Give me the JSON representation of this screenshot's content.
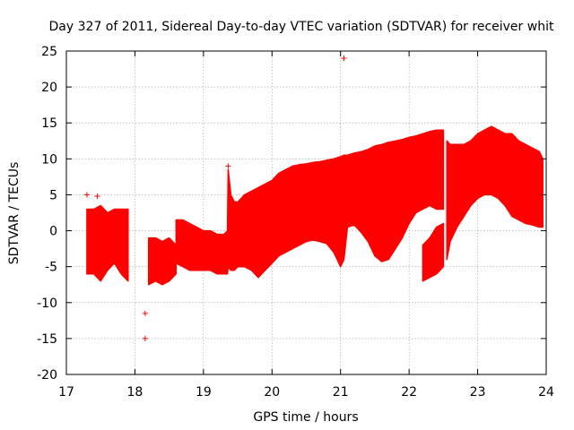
{
  "chart_data": {
    "type": "area",
    "title": "Day 327 of 2011, Sidereal Day-to-day VTEC variation (SDTVAR) for receiver whit",
    "xlabel": "GPS time / hours",
    "ylabel": "SDTVAR / TECUs",
    "xlim": [
      17,
      24
    ],
    "ylim": [
      -20,
      25
    ],
    "xticks": [
      "17",
      "18",
      "19",
      "20",
      "21",
      "22",
      "23",
      "24"
    ],
    "yticks": [
      "25",
      "20",
      "15",
      "10",
      "5",
      "0",
      "-5",
      "-10",
      "-15",
      "-20"
    ],
    "grid": true,
    "series_color": "#ff0000",
    "band": {
      "name": "SDTVAR range",
      "segments": [
        {
          "x": [
            17.3,
            17.4,
            17.5,
            17.6,
            17.7,
            17.8,
            17.9
          ],
          "upper": [
            3.0,
            3.0,
            3.5,
            2.5,
            3.0,
            3.0,
            3.0
          ],
          "lower": [
            -6.0,
            -6.0,
            -7.0,
            -5.5,
            -4.5,
            -6.0,
            -7.0
          ]
        },
        {
          "x": [
            18.2,
            18.3,
            18.4,
            18.5,
            18.6
          ],
          "upper": [
            -1.0,
            -1.0,
            -1.5,
            -1.0,
            -2.0
          ],
          "lower": [
            -7.5,
            -7.0,
            -7.5,
            -7.0,
            -6.0
          ]
        },
        {
          "x": [
            18.6,
            18.7,
            18.8,
            18.9,
            19.0,
            19.1,
            19.2,
            19.3,
            19.35,
            19.36,
            19.4,
            19.45,
            19.5,
            19.6,
            19.7,
            19.8,
            19.9,
            20.0,
            20.1,
            20.2,
            20.3,
            20.4,
            20.5,
            20.6,
            20.7,
            20.8,
            20.9,
            21.0,
            21.05,
            21.1,
            21.2,
            21.3,
            21.4,
            21.5,
            21.6,
            21.7,
            21.8,
            21.9,
            22.0,
            22.1,
            22.2,
            22.3,
            22.4,
            22.5
          ],
          "upper": [
            1.5,
            1.5,
            1.0,
            0.5,
            0.0,
            0.0,
            -0.5,
            -0.5,
            0.0,
            8.5,
            5.0,
            4.0,
            4.0,
            5.0,
            5.5,
            6.0,
            6.5,
            7.0,
            8.0,
            8.5,
            9.0,
            9.2,
            9.3,
            9.5,
            9.6,
            9.8,
            10.0,
            10.3,
            10.5,
            10.5,
            10.8,
            11.0,
            11.3,
            11.8,
            12.0,
            12.3,
            12.5,
            12.7,
            13.0,
            13.2,
            13.5,
            13.8,
            14.0,
            14.0
          ],
          "lower": [
            -4.5,
            -5.0,
            -5.5,
            -5.5,
            -5.5,
            -5.5,
            -6.0,
            -6.0,
            -6.0,
            -5.0,
            -5.5,
            -5.5,
            -5.0,
            -5.0,
            -5.5,
            -6.5,
            -5.5,
            -4.5,
            -3.5,
            -3.0,
            -2.5,
            -2.0,
            -1.5,
            -1.3,
            -1.5,
            -1.8,
            -3.0,
            -5.0,
            -4.0,
            0.5,
            0.8,
            -0.2,
            -1.5,
            -3.5,
            -4.3,
            -4.0,
            -2.5,
            -1.0,
            1.0,
            2.5,
            3.0,
            3.5,
            3.0,
            3.0
          ]
        },
        {
          "x": [
            22.2,
            22.3,
            22.4,
            22.5
          ],
          "upper": [
            -2.0,
            -1.0,
            0.5,
            1.0
          ],
          "lower": [
            -7.0,
            -6.5,
            -6.0,
            -5.0
          ]
        },
        {
          "x": [
            22.55,
            22.6,
            22.7,
            22.8,
            22.9,
            23.0,
            23.1,
            23.2,
            23.3,
            23.4,
            23.5,
            23.6,
            23.7,
            23.8,
            23.9,
            23.95
          ],
          "upper": [
            12.5,
            12.0,
            12.0,
            12.0,
            12.5,
            13.5,
            14.0,
            14.5,
            14.0,
            13.5,
            13.5,
            12.5,
            12.0,
            11.5,
            11.0,
            10.0
          ],
          "lower": [
            -4.0,
            -1.5,
            0.5,
            2.0,
            3.5,
            4.5,
            5.0,
            5.0,
            4.5,
            3.5,
            2.0,
            1.5,
            1.0,
            0.8,
            0.5,
            0.5
          ]
        }
      ]
    },
    "outliers": [
      {
        "x": 21.05,
        "y": 24
      },
      {
        "x": 18.15,
        "y": -15
      },
      {
        "x": 18.15,
        "y": -11.5
      },
      {
        "x": 19.36,
        "y": 9.0
      },
      {
        "x": 17.3,
        "y": 5.0
      },
      {
        "x": 17.45,
        "y": 4.8
      }
    ]
  }
}
